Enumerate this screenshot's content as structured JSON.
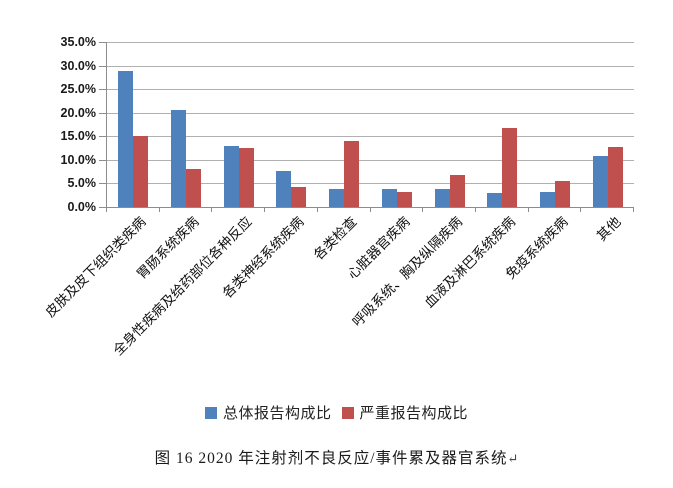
{
  "caption": {
    "text": "图 16  2020 年注射剂不良反应/事件累及器官系统",
    "paragraph_mark": "↵"
  },
  "chart_data": {
    "type": "bar",
    "categories": [
      "皮肤及皮下组织类疾病",
      "胃肠系统疾病",
      "全身性疾病及给药部位各种反应",
      "各类神经系统疾病",
      "各类检查",
      "心脏器官疾病",
      "呼吸系统、胸及纵隔疾病",
      "血液及淋巴系统疾病",
      "免疫系统疾病",
      "其他"
    ],
    "series": [
      {
        "name": "总体报告构成比",
        "color": "#4F81BD",
        "values": [
          28.8,
          20.6,
          12.9,
          7.7,
          3.9,
          3.8,
          3.8,
          2.9,
          3.1,
          10.8
        ]
      },
      {
        "name": "严重报告构成比",
        "color": "#C0504D",
        "values": [
          15.0,
          8.1,
          12.6,
          4.2,
          14.0,
          3.1,
          6.8,
          16.7,
          5.5,
          12.7
        ]
      }
    ],
    "y_axis": {
      "min": 0,
      "max": 35,
      "step": 5,
      "tick_labels": [
        "0.0%",
        "5.0%",
        "10.0%",
        "15.0%",
        "20.0%",
        "25.0%",
        "30.0%",
        "35.0%"
      ]
    },
    "x_label_rotation_deg": 45,
    "grid": true,
    "legend_position": "bottom",
    "colors": {
      "gridline": "#b0b0b0",
      "axis": "#8c8c8c",
      "text": "#111111"
    }
  }
}
